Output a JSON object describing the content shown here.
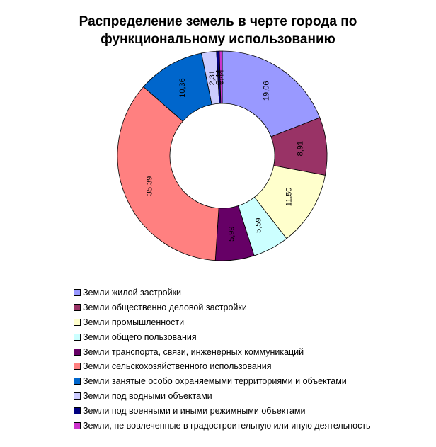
{
  "title": {
    "line1": "Распределение земель в черте города по",
    "line2": "функциональному использованию"
  },
  "chart_data": {
    "type": "pie",
    "subtype": "donut",
    "title": "Распределение земель в черте города по функциональному использованию",
    "start_angle": "12 o'clock, clockwise",
    "legend_position": "bottom",
    "categories": [
      "Земли жилой застройки",
      "Земли общественно деловой застройки",
      "Земли промышленности",
      "Земли общего пользования",
      "Земли транспорта, связи, инженерных коммуникаций",
      "Земли сельскохозяйственного использования",
      "Земли занятые особо охраняемыми территориями и объектами",
      "Земли под водными объектами",
      "Земли под военными и иными режимными объектами",
      "Земли, не вовлеченные в градостроительную или иную деятельность"
    ],
    "values": [
      19.06,
      8.91,
      11.5,
      5.59,
      5.99,
      35.39,
      10.36,
      2.31,
      0.44,
      0.44
    ],
    "labels": [
      "19,06",
      "8,91",
      "11,50",
      "5,59",
      "5,99",
      "35,39",
      "10,36",
      "2,31",
      "0,44",
      "0,44"
    ],
    "colors": [
      "#9999FF",
      "#993366",
      "#FFFFCC",
      "#CCFFFF",
      "#660066",
      "#FF8080",
      "#0066CC",
      "#CCCCFF",
      "#000080",
      "#CC33CC"
    ]
  },
  "legend": {
    "items": [
      {
        "label": "Земли жилой застройки",
        "color": "#9999FF"
      },
      {
        "label": "Земли общественно деловой застройки",
        "color": "#993366"
      },
      {
        "label": "Земли промышленности",
        "color": "#FFFFCC"
      },
      {
        "label": "Земли общего пользования",
        "color": "#CCFFFF"
      },
      {
        "label": "Земли транспорта, связи, инженерных коммуникаций",
        "color": "#660066"
      },
      {
        "label": "Земли сельскохозяйственного использования",
        "color": "#FF8080"
      },
      {
        "label": "Земли занятые особо охраняемыми территориями и объектами",
        "color": "#0066CC"
      },
      {
        "label": "Земли под водными объектами",
        "color": "#CCCCFF"
      },
      {
        "label": "Земли под военными и иными режимными объектами",
        "color": "#000080"
      },
      {
        "label": "Земли, не вовлеченные в градостроительную или иную деятельность",
        "color": "#CC33CC"
      }
    ]
  }
}
